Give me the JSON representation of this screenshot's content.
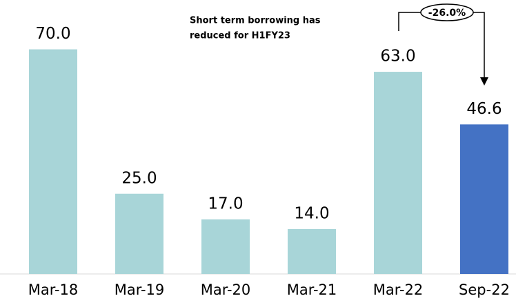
{
  "chart_data": {
    "type": "bar",
    "categories": [
      "Mar-18",
      "Mar-19",
      "Mar-20",
      "Mar-21",
      "Mar-22",
      "Sep-22"
    ],
    "values": [
      70,
      25,
      17,
      14,
      63,
      46.6
    ],
    "value_labels": [
      "70.0",
      "25.0",
      "17.0",
      "14.0",
      "63.0",
      "46.6"
    ],
    "colors": [
      "#a8d5d8",
      "#a8d5d8",
      "#a8d5d8",
      "#a8d5d8",
      "#a8d5d8",
      "#4472c4"
    ],
    "annotation": [
      "Short term borrowing has",
      "reduced for H1FY23"
    ],
    "change_label": "-26.0%"
  }
}
